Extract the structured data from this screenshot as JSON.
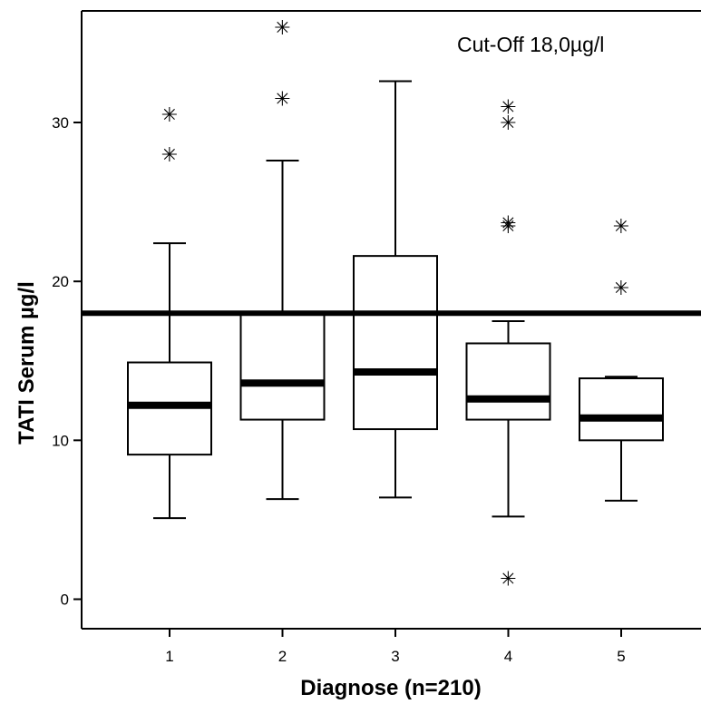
{
  "chart_data": {
    "type": "box",
    "xlabel": "Diagnose (n=210)",
    "ylabel": "TATI Serum µg/l",
    "annotation": "Cut-Off 18,0µg/l",
    "cutoff": 18.0,
    "ylim": [
      -2,
      37
    ],
    "yticks": [
      "0",
      "10",
      "20",
      "30"
    ],
    "categories": [
      "1",
      "2",
      "3",
      "4",
      "5"
    ],
    "boxes": [
      {
        "category": "1",
        "whisker_low": 5.1,
        "q1": 9.1,
        "median": 12.2,
        "q3": 14.9,
        "whisker_high": 22.4,
        "outliers": [
          28.0,
          30.5
        ]
      },
      {
        "category": "2",
        "whisker_low": 6.3,
        "q1": 11.3,
        "median": 13.6,
        "q3": 17.9,
        "whisker_high": 27.6,
        "outliers": [
          31.5,
          36.0
        ]
      },
      {
        "category": "3",
        "whisker_low": 6.4,
        "q1": 10.7,
        "median": 14.3,
        "q3": 21.6,
        "whisker_high": 32.6,
        "outliers": []
      },
      {
        "category": "4",
        "whisker_low": 5.2,
        "q1": 11.3,
        "median": 12.6,
        "q3": 16.1,
        "whisker_high": 17.5,
        "outliers": [
          1.3,
          23.5,
          23.7,
          30.0,
          31.0
        ]
      },
      {
        "category": "5",
        "whisker_low": 6.2,
        "q1": 10.0,
        "median": 11.4,
        "q3": 13.9,
        "whisker_high": 14.0,
        "outliers": [
          19.6,
          23.5
        ]
      }
    ],
    "colors": {
      "line": "#000000",
      "box_fill": "#ffffff",
      "background": "#ffffff"
    },
    "grid": false,
    "legend": "none"
  }
}
